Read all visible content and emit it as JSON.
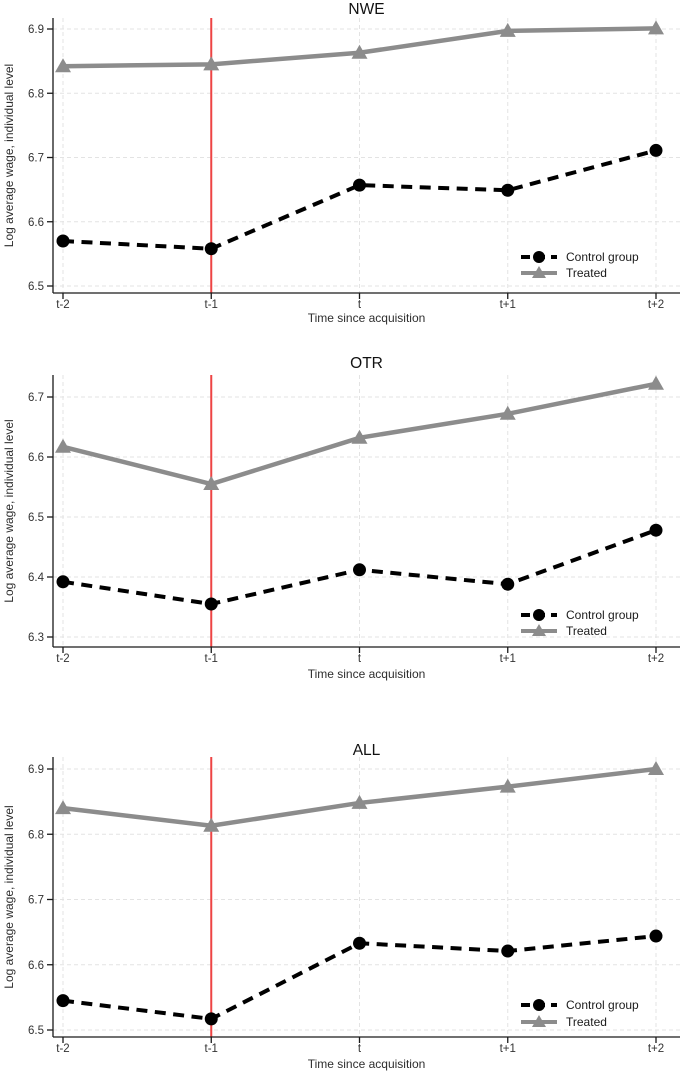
{
  "figure": {
    "colors": {
      "control": "#000000",
      "treated": "#8c8c8c",
      "event_line": "#ee4444",
      "grid": "#e3e3e3",
      "axis": "#1a1a1a"
    }
  },
  "chart_data": [
    {
      "type": "line",
      "title": "NWE",
      "xlabel": "Time since acquisition",
      "ylabel": "Log average wage, individual level",
      "categories": [
        "t-2",
        "t-1",
        "t",
        "t+1",
        "t+2"
      ],
      "yticks": [
        "6.5",
        "6.6",
        "6.7",
        "6.8",
        "6.9"
      ],
      "ylim": [
        6.5,
        6.9
      ],
      "vline_at": "t-1",
      "grid": true,
      "legend_position": "bottom-right",
      "series": [
        {
          "name": "Control group",
          "style": "dashed",
          "marker": "circle",
          "values": [
            6.57,
            6.558,
            6.657,
            6.649,
            6.711
          ]
        },
        {
          "name": "Treated",
          "style": "solid",
          "marker": "triangle",
          "values": [
            6.842,
            6.845,
            6.863,
            6.897,
            6.901
          ]
        }
      ]
    },
    {
      "type": "line",
      "title": "OTR",
      "xlabel": "Time since acquisition",
      "ylabel": "Log average wage, individual level",
      "categories": [
        "t-2",
        "t-1",
        "t",
        "t+1",
        "t+2"
      ],
      "yticks": [
        "6.3",
        "6.4",
        "6.5",
        "6.6",
        "6.7"
      ],
      "ylim": [
        6.3,
        6.7
      ],
      "vline_at": "t-1",
      "grid": true,
      "legend_position": "bottom-right",
      "series": [
        {
          "name": "Control group",
          "style": "dashed",
          "marker": "circle",
          "values": [
            6.392,
            6.355,
            6.412,
            6.388,
            6.478
          ]
        },
        {
          "name": "Treated",
          "style": "solid",
          "marker": "triangle",
          "values": [
            6.617,
            6.555,
            6.632,
            6.672,
            6.722
          ]
        }
      ]
    },
    {
      "type": "line",
      "title": "ALL",
      "xlabel": "Time since acquisition",
      "ylabel": "Log average wage, individual level",
      "categories": [
        "t-2",
        "t-1",
        "t",
        "t+1",
        "t+2"
      ],
      "yticks": [
        "6.5",
        "6.6",
        "6.7",
        "6.8",
        "6.9"
      ],
      "ylim": [
        6.5,
        6.9
      ],
      "vline_at": "t-1",
      "grid": true,
      "legend_position": "bottom-right",
      "series": [
        {
          "name": "Control group",
          "style": "dashed",
          "marker": "circle",
          "values": [
            6.545,
            6.517,
            6.633,
            6.621,
            6.644
          ]
        },
        {
          "name": "Treated",
          "style": "solid",
          "marker": "triangle",
          "values": [
            6.84,
            6.813,
            6.848,
            6.873,
            6.9
          ]
        }
      ]
    }
  ]
}
